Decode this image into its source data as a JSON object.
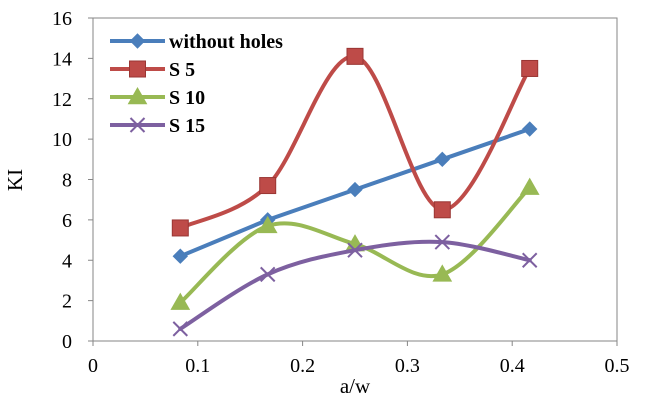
{
  "chart_data": {
    "type": "line",
    "xlabel": "a/w",
    "ylabel": "KI",
    "xlim": [
      0,
      0.5
    ],
    "ylim": [
      0,
      16
    ],
    "x_ticks": [
      "0",
      "0.1",
      "0.2",
      "0.3",
      "0.4",
      "0.5"
    ],
    "y_ticks": [
      "0",
      "2",
      "4",
      "6",
      "8",
      "10",
      "12",
      "14",
      "16"
    ],
    "grid": false,
    "legend_position": "top-left",
    "x": [
      0.0833,
      0.1667,
      0.25,
      0.3333,
      0.4167
    ],
    "series": [
      {
        "name": "without holes",
        "values": [
          4.2,
          6.0,
          7.5,
          9.0,
          10.5
        ],
        "color": "#4a7ebb",
        "marker": "diamond",
        "smooth": false
      },
      {
        "name": "S 5",
        "values": [
          5.6,
          7.7,
          14.1,
          6.5,
          13.5
        ],
        "color": "#be4b48",
        "marker": "square",
        "smooth": true
      },
      {
        "name": "S 10",
        "values": [
          1.9,
          5.7,
          4.8,
          3.3,
          7.6
        ],
        "color": "#98b954",
        "marker": "triangle",
        "smooth": true
      },
      {
        "name": "S 15",
        "values": [
          0.6,
          3.3,
          4.5,
          4.9,
          4.0
        ],
        "color": "#7d60a0",
        "marker": "x",
        "smooth": true
      }
    ]
  }
}
